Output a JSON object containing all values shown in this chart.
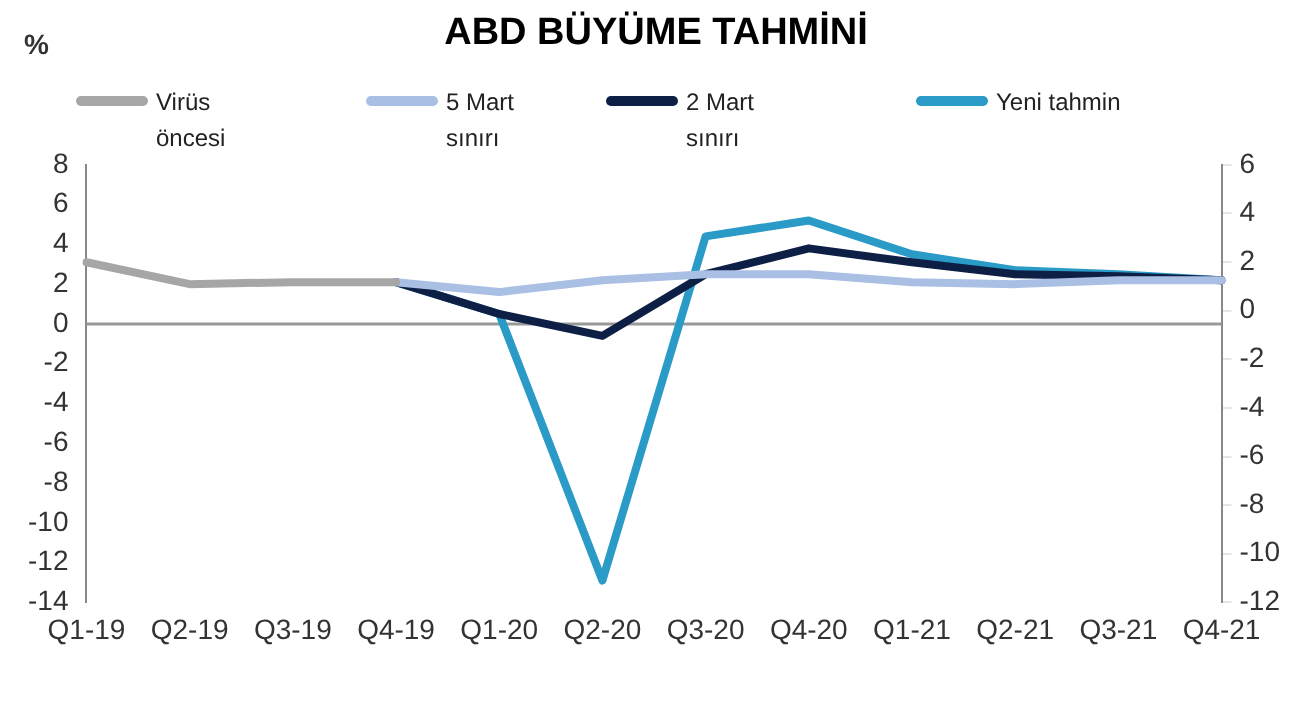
{
  "chart_data": {
    "type": "line",
    "title": "ABD BÜYÜME TAHMİNİ",
    "ylabel": "%",
    "categories": [
      "Q1-19",
      "Q2-19",
      "Q3-19",
      "Q4-19",
      "Q1-20",
      "Q2-20",
      "Q3-20",
      "Q4-20",
      "Q1-21",
      "Q2-21",
      "Q3-21",
      "Q4-21"
    ],
    "series": [
      {
        "name": "Virüs öncesi",
        "color": "#a6a6a6",
        "values": [
          3.1,
          2.0,
          2.1,
          2.1,
          null,
          null,
          null,
          null,
          null,
          null,
          null,
          null
        ]
      },
      {
        "name": "5 Mart sınırı",
        "color": "#a9bfe3",
        "values": [
          null,
          null,
          null,
          2.1,
          1.6,
          2.2,
          2.5,
          2.5,
          2.1,
          2.0,
          2.2,
          2.2
        ]
      },
      {
        "name": "2 Mart sınırı",
        "color": "#0d1f45",
        "values": [
          null,
          null,
          null,
          2.1,
          0.5,
          -0.6,
          2.5,
          3.8,
          3.1,
          2.5,
          2.4,
          2.2
        ]
      },
      {
        "name": "Yeni tahmin",
        "color": "#2a9ac6",
        "values": [
          null,
          null,
          null,
          2.1,
          0.5,
          -12.9,
          4.4,
          5.2,
          3.5,
          2.7,
          2.5,
          2.2
        ]
      }
    ],
    "ylim": [
      -14,
      8
    ],
    "yticks": [
      -14,
      -12,
      -10,
      -8,
      -6,
      -4,
      -2,
      0,
      2,
      4,
      6,
      8
    ],
    "y2lim": [
      -12,
      6
    ],
    "y2ticks": [
      -12,
      -10,
      -8,
      -6,
      -4,
      -2,
      0,
      2,
      4,
      6
    ],
    "ref_lines": [
      {
        "axis": "y",
        "value": 0,
        "color": "#999999"
      }
    ],
    "grid": false,
    "legend": "top",
    "marker": "none",
    "line_style": "solid"
  }
}
